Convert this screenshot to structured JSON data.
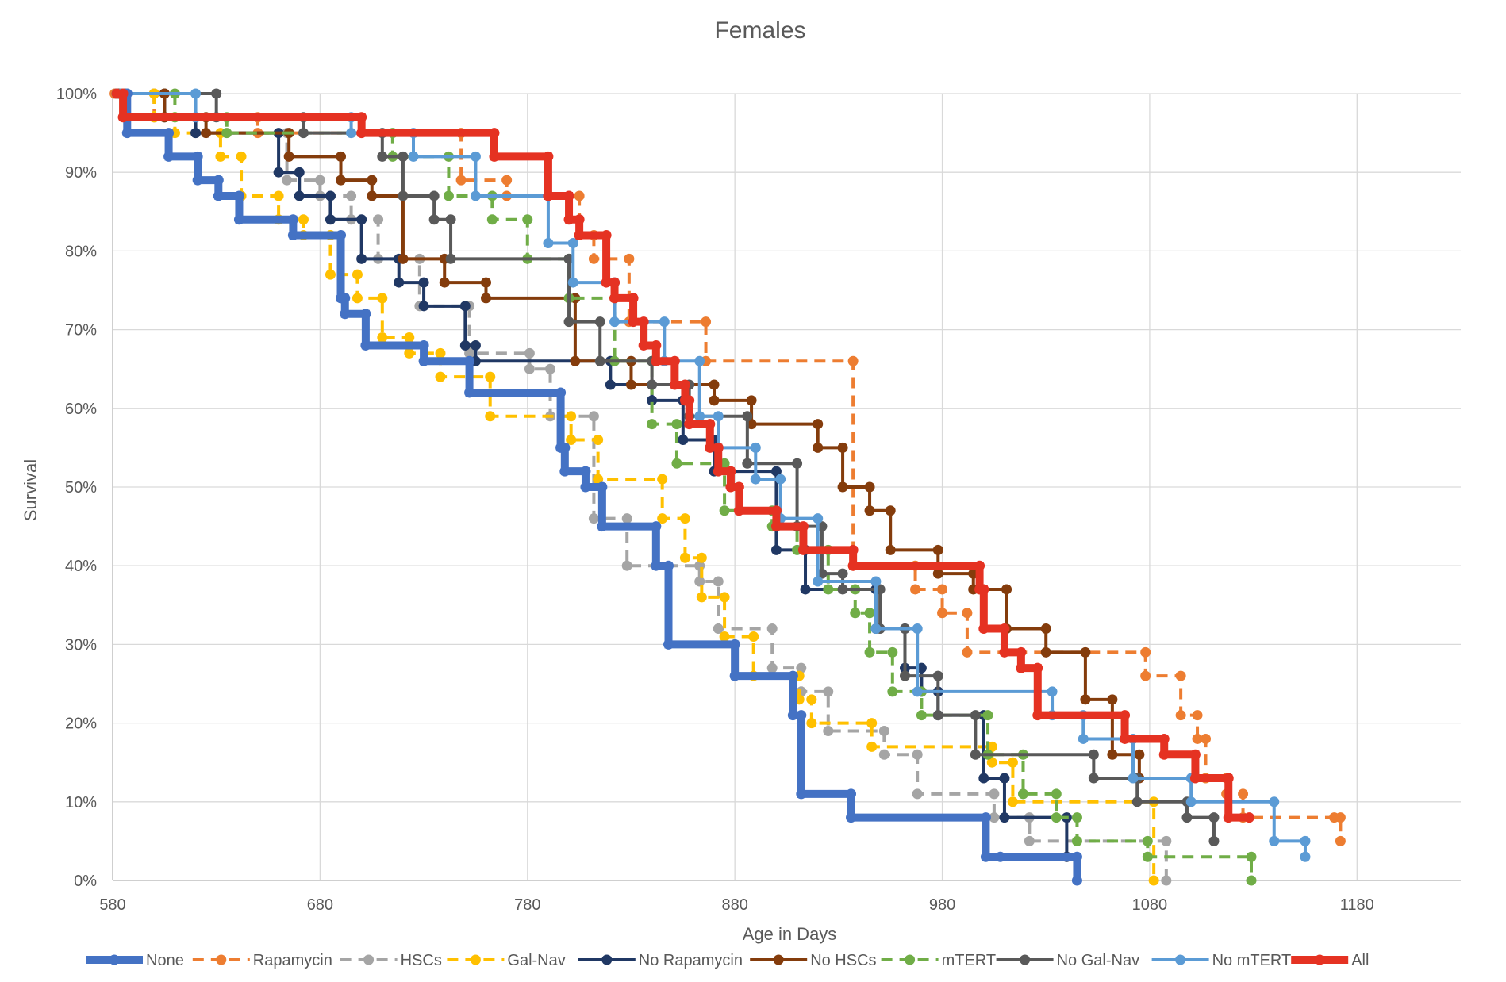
{
  "chart_data": {
    "type": "line",
    "subtype": "kaplan-meier step",
    "title": "Females",
    "xlabel": "Age in Days",
    "ylabel": "Survival",
    "xlim": [
      580,
      1230
    ],
    "ylim": [
      0,
      100
    ],
    "x_ticks": [
      "580",
      "680",
      "780",
      "880",
      "980",
      "1080",
      "1180"
    ],
    "x_tick_values": [
      580,
      680,
      780,
      880,
      980,
      1080,
      1180
    ],
    "y_ticks": [
      "0%",
      "10%",
      "20%",
      "30%",
      "40%",
      "50%",
      "60%",
      "70%",
      "80%",
      "90%",
      "100%"
    ],
    "y_tick_values": [
      0,
      10,
      20,
      30,
      40,
      50,
      60,
      70,
      80,
      90,
      100
    ],
    "grid": true,
    "legend_position": "bottom",
    "series": [
      {
        "name": "None",
        "color": "#4472C4",
        "style": "solid",
        "weight": "thick",
        "x": [
          582,
          587,
          607,
          621,
          631,
          641,
          667,
          690,
          692,
          702,
          730,
          752,
          796,
          798,
          808,
          816,
          842,
          848,
          880,
          908,
          912,
          936,
          1001,
          1008,
          1045
        ],
        "y": [
          100,
          95,
          92,
          89,
          87,
          84,
          82,
          74,
          72,
          68,
          66,
          62,
          55,
          52,
          50,
          45,
          40,
          30,
          26,
          21,
          11,
          8,
          3,
          3,
          0
        ]
      },
      {
        "name": "Rapamycin",
        "color": "#ED7D31",
        "style": "dashed",
        "weight": "normal",
        "x": [
          581,
          600,
          650,
          748,
          770,
          805,
          812,
          829,
          866,
          937,
          967,
          980,
          992,
          1078,
          1095,
          1103,
          1107,
          1117,
          1125,
          1169,
          1172
        ],
        "y": [
          100,
          97,
          95,
          89,
          87,
          82,
          79,
          71,
          66,
          40,
          37,
          34,
          29,
          26,
          21,
          18,
          13,
          11,
          8,
          8,
          5
        ],
        "ends": [
          1169
        ]
      },
      {
        "name": "HSCs",
        "color": "#A5A5A5",
        "style": "dashed",
        "weight": "normal",
        "x": [
          582,
          600,
          620,
          664,
          680,
          695,
          708,
          728,
          752,
          781,
          791,
          812,
          828,
          863,
          872,
          898,
          912,
          925,
          952,
          968,
          1005,
          1022,
          1088
        ],
        "y": [
          100,
          97,
          95,
          89,
          87,
          84,
          79,
          73,
          67,
          65,
          59,
          46,
          40,
          38,
          32,
          27,
          24,
          19,
          16,
          11,
          8,
          5,
          0
        ]
      },
      {
        "name": "Gal-Nav",
        "color": "#FFC000",
        "style": "dashed",
        "weight": "normal",
        "x": [
          582,
          600,
          610,
          632,
          642,
          660,
          672,
          685,
          698,
          710,
          723,
          738,
          762,
          801,
          814,
          845,
          856,
          864,
          875,
          889,
          911,
          917,
          946,
          1004,
          1014,
          1082
        ],
        "y": [
          100,
          97,
          95,
          92,
          87,
          84,
          82,
          77,
          74,
          69,
          67,
          64,
          59,
          56,
          51,
          46,
          41,
          36,
          31,
          26,
          23,
          20,
          17,
          15,
          10,
          0
        ]
      },
      {
        "name": "No Rapamycin",
        "color": "#203864",
        "style": "solid",
        "weight": "normal",
        "x": [
          582,
          605,
          620,
          660,
          670,
          685,
          700,
          718,
          730,
          750,
          755,
          820,
          840,
          855,
          870,
          900,
          914,
          948,
          962,
          970,
          978,
          1000,
          1010,
          1040
        ],
        "y": [
          100,
          97,
          95,
          90,
          87,
          84,
          79,
          76,
          73,
          68,
          66,
          63,
          61,
          56,
          52,
          42,
          37,
          32,
          27,
          24,
          21,
          13,
          8,
          3
        ]
      },
      {
        "name": "No HSCs",
        "color": "#843C0C",
        "style": "solid",
        "weight": "normal",
        "x": [
          583,
          605,
          625,
          665,
          690,
          705,
          720,
          740,
          760,
          803,
          830,
          870,
          888,
          920,
          932,
          945,
          955,
          978,
          995,
          1011,
          1030,
          1049,
          1062,
          1075
        ],
        "y": [
          100,
          97,
          95,
          92,
          89,
          87,
          79,
          76,
          74,
          66,
          63,
          61,
          58,
          55,
          50,
          47,
          42,
          39,
          37,
          32,
          29,
          23,
          16,
          13
        ]
      },
      {
        "name": "mTERT",
        "color": "#70AD47",
        "style": "dashed",
        "weight": "normal",
        "x": [
          584,
          610,
          635,
          715,
          742,
          763,
          780,
          800,
          822,
          840,
          852,
          875,
          898,
          910,
          925,
          938,
          945,
          956,
          970,
          1002,
          1019,
          1035,
          1045,
          1079,
          1129
        ],
        "y": [
          100,
          97,
          95,
          92,
          87,
          84,
          79,
          74,
          66,
          58,
          53,
          47,
          45,
          42,
          37,
          34,
          29,
          24,
          21,
          16,
          11,
          8,
          5,
          3,
          0
        ]
      },
      {
        "name": "No Gal-Nav",
        "color": "#595959",
        "style": "solid",
        "weight": "normal",
        "x": [
          586,
          630,
          672,
          710,
          720,
          735,
          743,
          800,
          815,
          840,
          858,
          886,
          910,
          922,
          932,
          950,
          962,
          978,
          996,
          1053,
          1074,
          1098,
          1111
        ],
        "y": [
          100,
          97,
          95,
          92,
          87,
          84,
          79,
          71,
          66,
          63,
          59,
          53,
          45,
          39,
          37,
          32,
          26,
          21,
          16,
          13,
          10,
          8,
          5
        ]
      },
      {
        "name": "No mTERT",
        "color": "#5B9BD5",
        "style": "solid",
        "weight": "normal",
        "x": [
          584,
          620,
          695,
          725,
          755,
          790,
          802,
          822,
          846,
          863,
          872,
          890,
          902,
          920,
          948,
          968,
          1033,
          1048,
          1072,
          1100,
          1140,
          1155
        ],
        "y": [
          100,
          97,
          95,
          92,
          87,
          81,
          76,
          71,
          66,
          59,
          55,
          51,
          46,
          38,
          32,
          24,
          21,
          18,
          13,
          10,
          5,
          3
        ]
      },
      {
        "name": "All",
        "color": "#E53222",
        "style": "solid",
        "weight": "thick",
        "x": [
          582,
          585,
          700,
          764,
          790,
          800,
          805,
          818,
          822,
          831,
          836,
          842,
          851,
          856,
          858,
          868,
          872,
          878,
          882,
          900,
          913,
          937,
          998,
          1000,
          1010,
          1018,
          1026,
          1068,
          1087,
          1102,
          1118,
          1128
        ],
        "y": [
          100,
          97,
          95,
          92,
          87,
          84,
          82,
          76,
          74,
          71,
          68,
          66,
          63,
          61,
          58,
          55,
          52,
          50,
          47,
          45,
          42,
          40,
          37,
          32,
          29,
          27,
          21,
          18,
          16,
          13,
          8,
          8
        ],
        "ends": [
          1128
        ]
      }
    ]
  }
}
